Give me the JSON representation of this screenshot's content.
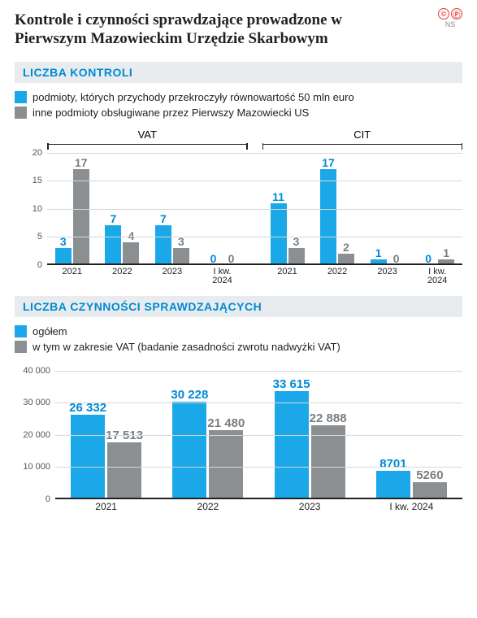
{
  "meta": {
    "badge_c": "©",
    "badge_p": "Ⓟ",
    "initials": "NS"
  },
  "title": "Kontrole i czynności sprawdzające prowadzone w Pierwszym Mazowieckim Urzędzie Skarbowym",
  "section1": {
    "header": "LICZBA KONTROLI",
    "legend": [
      {
        "label": "podmioty, których przychody przekroczyły równowartość 50 mln euro",
        "color": "#1aa8e8"
      },
      {
        "label": "inne podmioty obsługiwane przez Pierwszy Mazowiecki US",
        "color": "#8b8f92"
      }
    ],
    "chart": {
      "type": "bar",
      "panels": [
        "VAT",
        "CIT"
      ],
      "categories": [
        "2021",
        "2022",
        "2023",
        "I kw.\n2024"
      ],
      "ylim": [
        0,
        20
      ],
      "yticks": [
        0,
        5,
        10,
        15,
        20
      ],
      "grid_color": "#d5d7d8",
      "series_colors": [
        "#1aa8e8",
        "#8b8f92"
      ],
      "label_colors": [
        "#0089d6",
        "#7a7e81"
      ],
      "vat": {
        "s1": [
          3,
          7,
          7,
          0
        ],
        "s2": [
          17,
          4,
          3,
          0
        ]
      },
      "cit": {
        "s1": [
          11,
          17,
          1,
          0
        ],
        "s2": [
          3,
          2,
          0,
          1
        ]
      }
    }
  },
  "section2": {
    "header": "LICZBA CZYNNOŚCI SPRAWDZAJĄCYCH",
    "legend": [
      {
        "label": "ogółem",
        "color": "#1aa8e8"
      },
      {
        "label": "w tym w zakresie VAT (badanie zasadności zwrotu nadwyżki VAT)",
        "color": "#8b8f92"
      }
    ],
    "chart": {
      "type": "bar",
      "categories": [
        "2021",
        "2022",
        "2023",
        "I kw. 2024"
      ],
      "ylim": [
        0,
        40000
      ],
      "yticks": [
        0,
        10000,
        20000,
        30000,
        40000
      ],
      "ytick_labels": [
        "0",
        "10 000",
        "20 000",
        "30 000",
        "40 000"
      ],
      "grid_color": "#d5d7d8",
      "series_colors": [
        "#1aa8e8",
        "#8b8f92"
      ],
      "label_colors": [
        "#0089d6",
        "#7a7e81"
      ],
      "s1": [
        26332,
        30228,
        33615,
        8701
      ],
      "s1_labels": [
        "26 332",
        "30 228",
        "33 615",
        "8701"
      ],
      "s2": [
        17513,
        21480,
        22888,
        5260
      ],
      "s2_labels": [
        "17 513",
        "21 480",
        "22 888",
        "5260"
      ]
    }
  }
}
